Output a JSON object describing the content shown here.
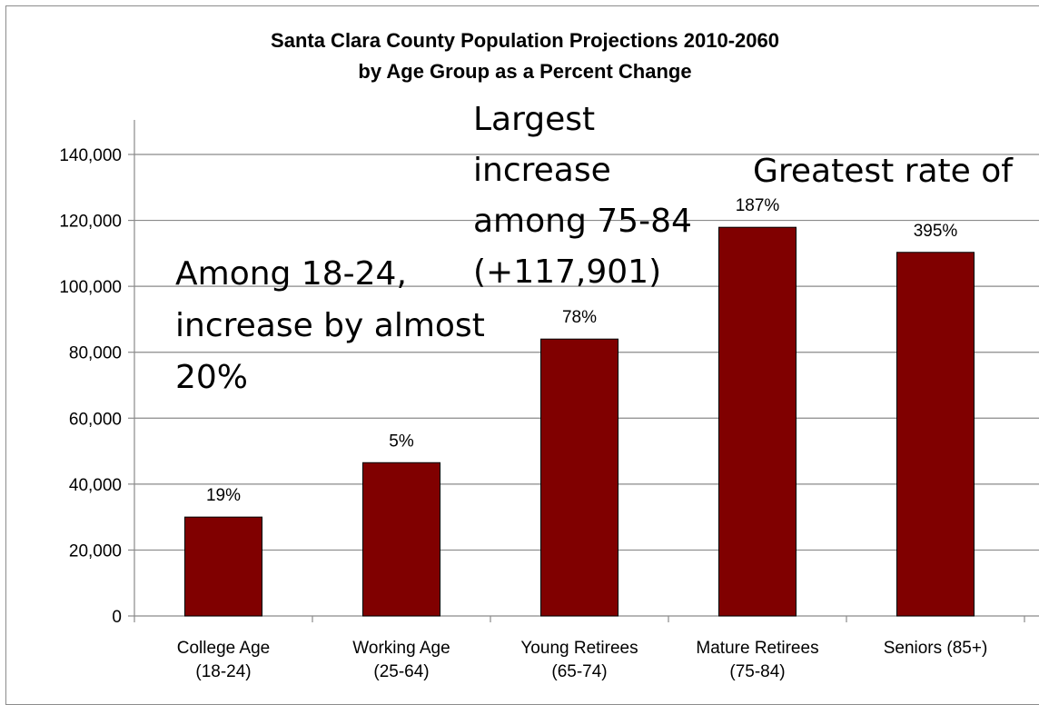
{
  "chart_data": {
    "type": "bar",
    "title": "Santa Clara County Population Projections 2010-2060",
    "subtitle": "by Age Group as a Percent Change",
    "xlabel": "",
    "ylabel": "",
    "ylim": [
      0,
      140000
    ],
    "yticks": [
      0,
      20000,
      40000,
      60000,
      80000,
      100000,
      120000,
      140000
    ],
    "ytick_labels": [
      "0",
      "20,000",
      "40,000",
      "60,000",
      "80,000",
      "100,000",
      "120,000",
      "140,000"
    ],
    "grid": true,
    "legend": "none",
    "bar_color": "#800000",
    "categories": [
      [
        "College Age",
        "(18-24)"
      ],
      [
        "Working Age",
        "(25-64)"
      ],
      [
        "Young Retirees",
        "(65-74)"
      ],
      [
        "Mature Retirees",
        "(75-84)"
      ],
      [
        "Seniors (85+)"
      ]
    ],
    "values": [
      30000,
      46500,
      84000,
      117901,
      110300
    ],
    "data_labels": [
      "19%",
      "5%",
      "78%",
      "187%",
      "395%"
    ],
    "annotations": [
      {
        "id": "among-18-24",
        "lines": [
          "Among 18-24,",
          "increase by almost",
          "20%"
        ]
      },
      {
        "id": "largest-increase",
        "lines": [
          "Largest",
          "increase",
          "among 75-84",
          "(+117,901)"
        ]
      },
      {
        "id": "greatest-rate",
        "lines": [
          "Greatest rate of"
        ]
      }
    ]
  }
}
